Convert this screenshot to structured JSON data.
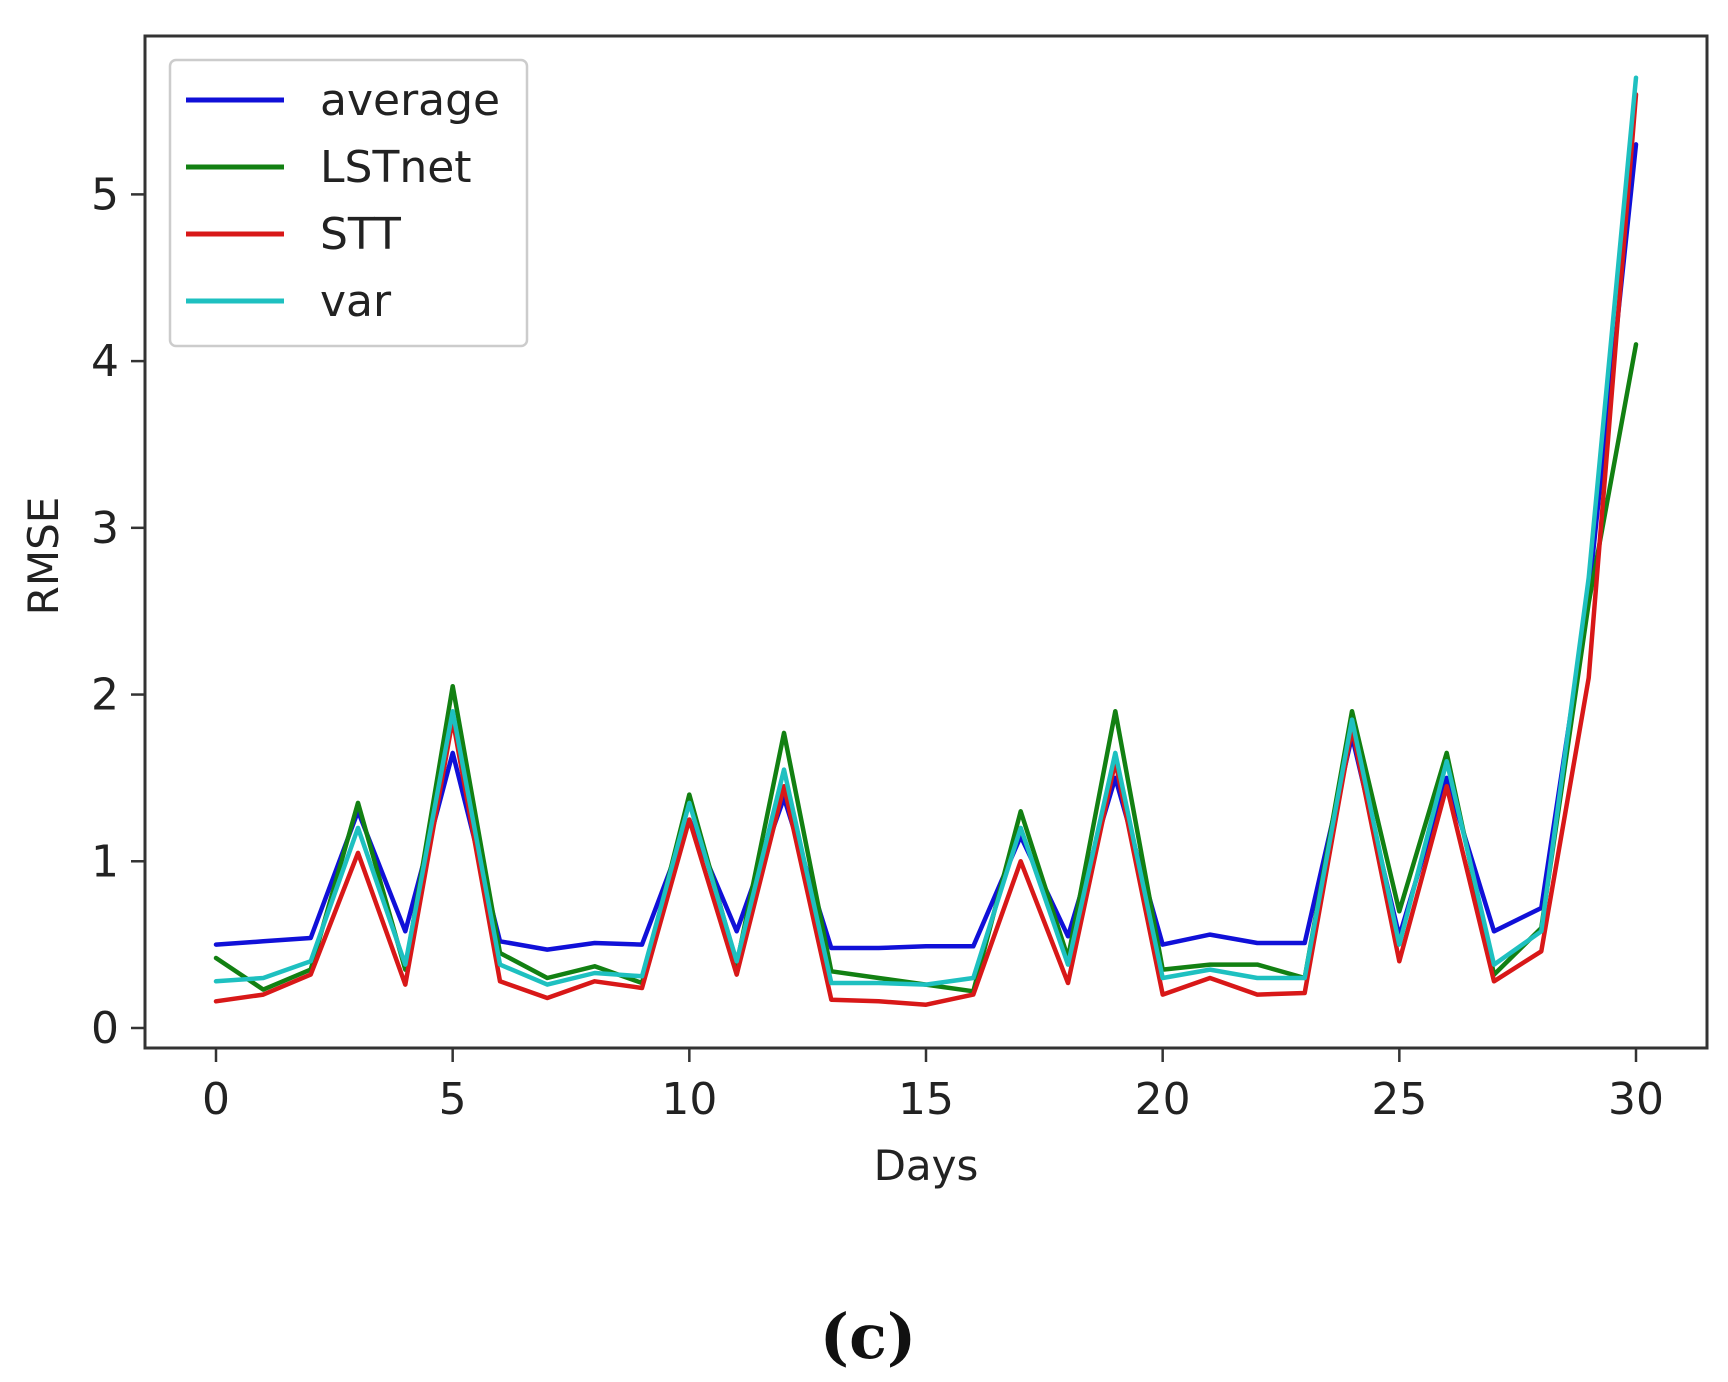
{
  "chart_data": {
    "type": "line",
    "title": "",
    "xlabel": "Days",
    "ylabel": "RMSE",
    "panel_label": "(c)",
    "xlim": [
      -1.5,
      31.5
    ],
    "ylim": [
      -0.12,
      5.95
    ],
    "xticks": [
      0,
      5,
      10,
      15,
      20,
      25,
      30
    ],
    "yticks": [
      0,
      1,
      2,
      3,
      4,
      5
    ],
    "grid": false,
    "legend_position": "top-left",
    "x": [
      0,
      1,
      2,
      3,
      4,
      5,
      6,
      7,
      8,
      9,
      10,
      11,
      12,
      13,
      14,
      15,
      16,
      17,
      18,
      19,
      20,
      21,
      22,
      23,
      24,
      25,
      26,
      27,
      28,
      29,
      30
    ],
    "series": [
      {
        "name": "average",
        "color": "#1010d8",
        "values": [
          0.5,
          0.52,
          0.54,
          1.3,
          0.58,
          1.65,
          0.52,
          0.47,
          0.51,
          0.5,
          1.25,
          0.58,
          1.38,
          0.48,
          0.48,
          0.49,
          0.49,
          1.15,
          0.55,
          1.5,
          0.5,
          0.56,
          0.51,
          0.51,
          1.75,
          0.55,
          1.5,
          0.58,
          0.72,
          2.6,
          5.3
        ]
      },
      {
        "name": "LSTnet",
        "color": "#128012",
        "values": [
          0.42,
          0.23,
          0.35,
          1.35,
          0.35,
          2.05,
          0.45,
          0.3,
          0.37,
          0.27,
          1.4,
          0.38,
          1.77,
          0.34,
          0.3,
          0.26,
          0.22,
          1.3,
          0.42,
          1.9,
          0.35,
          0.38,
          0.38,
          0.3,
          1.9,
          0.7,
          1.65,
          0.32,
          0.6,
          2.55,
          4.1
        ]
      },
      {
        "name": "STT",
        "color": "#d81818",
        "values": [
          0.16,
          0.2,
          0.32,
          1.05,
          0.26,
          1.85,
          0.28,
          0.18,
          0.28,
          0.24,
          1.25,
          0.32,
          1.45,
          0.17,
          0.16,
          0.14,
          0.2,
          1.0,
          0.27,
          1.6,
          0.2,
          0.3,
          0.2,
          0.21,
          1.8,
          0.4,
          1.45,
          0.28,
          0.46,
          2.1,
          5.6
        ]
      },
      {
        "name": "var",
        "color": "#1ec0c0",
        "values": [
          0.28,
          0.3,
          0.4,
          1.2,
          0.38,
          1.9,
          0.38,
          0.26,
          0.33,
          0.31,
          1.35,
          0.4,
          1.55,
          0.27,
          0.27,
          0.26,
          0.3,
          1.2,
          0.38,
          1.65,
          0.3,
          0.35,
          0.3,
          0.3,
          1.85,
          0.5,
          1.6,
          0.38,
          0.58,
          2.7,
          5.7
        ]
      }
    ]
  }
}
